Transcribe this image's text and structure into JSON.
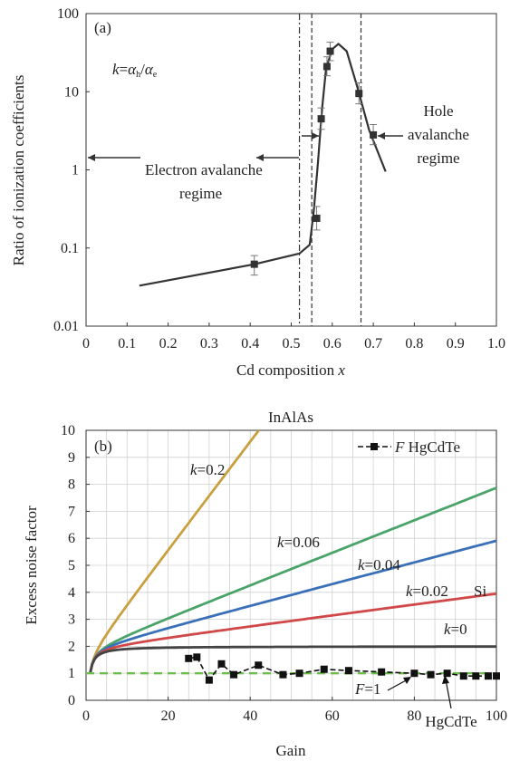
{
  "chart_data": [
    {
      "type": "line",
      "panel_label": "(a)",
      "xlabel": "Cd composition ",
      "xlabel_var": "x",
      "ylabel": "Ratio of ionization coefficients",
      "xlim": [
        0,
        1.0
      ],
      "ylim": [
        0.01,
        100
      ],
      "yscale": "log",
      "x_ticks": [
        "0",
        "0.1",
        "0.2",
        "0.3",
        "0.4",
        "0.5",
        "0.6",
        "0.7",
        "0.8",
        "0.9",
        "1.0"
      ],
      "y_ticks": [
        "0.01",
        "0.1",
        "1",
        "10",
        "100"
      ],
      "formula": {
        "k": "k",
        "eq": "=",
        "alpha1": "α",
        "sub1": "h",
        "slash": "/",
        "alpha2": "α",
        "sub2": "e"
      },
      "annotations": {
        "electron_line1": "Electron avalanche",
        "electron_line2": "regime",
        "hole_line1": "Hole",
        "hole_line2": "avalanche",
        "hole_line3": "regime"
      },
      "curve": {
        "x": [
          0.13,
          0.41,
          0.52,
          0.545,
          0.555,
          0.565,
          0.575,
          0.585,
          0.6,
          0.615,
          0.635,
          0.66,
          0.69,
          0.73
        ],
        "y": [
          0.033,
          0.062,
          0.085,
          0.11,
          0.3,
          1.2,
          6.0,
          20,
          35,
          41,
          33,
          12,
          3.2,
          0.95
        ]
      },
      "points": [
        {
          "x": 0.41,
          "y": 0.062,
          "lo": 0.045,
          "hi": 0.08
        },
        {
          "x": 0.562,
          "y": 0.24,
          "lo": 0.17,
          "hi": 0.34
        },
        {
          "x": 0.573,
          "y": 4.5,
          "lo": 3.3,
          "hi": 6.2
        },
        {
          "x": 0.587,
          "y": 21,
          "lo": 16,
          "hi": 28
        },
        {
          "x": 0.595,
          "y": 33,
          "lo": 25,
          "hi": 43
        },
        {
          "x": 0.665,
          "y": 9.5,
          "lo": 7,
          "hi": 13
        },
        {
          "x": 0.7,
          "y": 2.8,
          "lo": 2.1,
          "hi": 3.8
        }
      ],
      "vlines": [
        {
          "x": 0.52,
          "style": "dash-dot"
        },
        {
          "x": 0.55,
          "style": "dashed"
        },
        {
          "x": 0.67,
          "style": "dashed"
        }
      ]
    },
    {
      "type": "line",
      "title": "InAlAs",
      "panel_label": "(b)",
      "xlabel": "Gain",
      "ylabel": "Excess noise factor",
      "xlim": [
        0,
        100
      ],
      "ylim": [
        0,
        10
      ],
      "x_ticks": [
        "0",
        "20",
        "40",
        "60",
        "80",
        "100"
      ],
      "y_ticks": [
        "0",
        "1",
        "2",
        "3",
        "4",
        "5",
        "6",
        "7",
        "8",
        "9",
        "10"
      ],
      "grid": true,
      "legend": {
        "marker_label_var": "F",
        "label": " HgCdTe",
        "position": "top-right"
      },
      "series": [
        {
          "k": 0.2,
          "color": "#c8a040"
        },
        {
          "k": 0.06,
          "color": "#4aa46a"
        },
        {
          "k": 0.04,
          "color": "#3a70b8"
        },
        {
          "k": 0.02,
          "color": "#d04848"
        },
        {
          "k": 0,
          "color": "#444444"
        }
      ],
      "series_labels": {
        "k02": {
          "var": "k",
          "val": "=0.2"
        },
        "k006": {
          "var": "k",
          "val": "=0.06"
        },
        "k004": {
          "var": "k",
          "val": "=0.04"
        },
        "k002": {
          "var": "k",
          "val": "=0.02"
        },
        "si": "Si",
        "k0": {
          "var": "k",
          "val": "=0"
        }
      },
      "f1_line": {
        "color": "#6cbf4a",
        "label_var": "F",
        "label_val": "=1"
      },
      "hgcdte_label": "HgCdTe",
      "hgcdte_points": {
        "x": [
          25,
          27,
          30,
          33,
          36,
          42,
          48,
          52,
          58,
          64,
          72,
          80,
          84,
          88,
          92,
          95,
          98,
          100
        ],
        "y": [
          1.55,
          1.6,
          0.75,
          1.35,
          0.95,
          1.3,
          0.95,
          1.0,
          1.15,
          1.1,
          1.05,
          1.0,
          0.95,
          1.0,
          0.9,
          0.9,
          0.9,
          0.9
        ]
      }
    }
  ]
}
